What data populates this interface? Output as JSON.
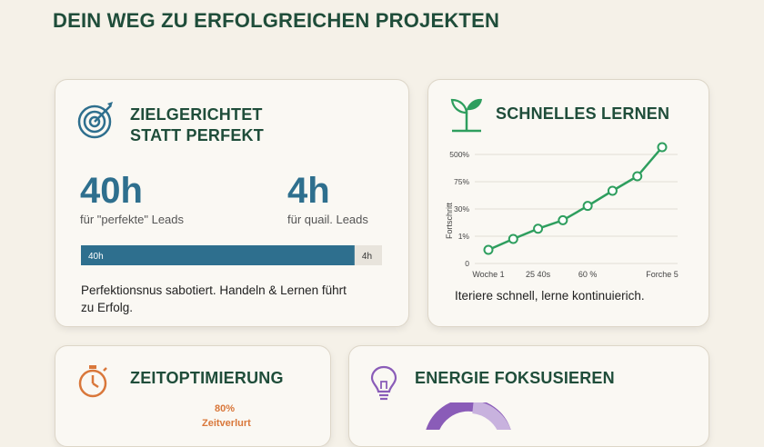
{
  "title": "DEIN WEG ZU ERFOLGREICHEN PROJEKTEN",
  "card1": {
    "title": "ZIELGERICHTET STATT PERFEKT",
    "stat1": {
      "value": "40h",
      "label": "für \"perfekte\" Leads"
    },
    "stat2": {
      "value": "4h",
      "label": "für quail. Leads"
    },
    "bar": {
      "values": [
        40,
        4
      ],
      "value_labels": [
        "40h",
        "4h"
      ],
      "colors": [
        "#2e6f8e",
        "#e8e4dc"
      ]
    },
    "caption": "Perfektionsnus sabotiert. Handeln & Lernen führt zu Erfolg."
  },
  "card2": {
    "title": "SCHNELLES LERNEN",
    "chart": {
      "type": "line",
      "ylabel": "Fortschritt",
      "categories": [
        "Woche 1",
        null,
        "25 40s",
        null,
        "60 %",
        null,
        null,
        "Forche 5"
      ],
      "values": [
        0.5,
        0.9,
        9,
        18,
        35,
        60,
        160,
        600
      ],
      "color": "#2e9e5e",
      "ylim": [
        0,
        600
      ],
      "yticks": [
        0,
        {
          "value": 1,
          "label": "1%"
        },
        {
          "value": 30,
          "label": "30%"
        },
        {
          "value": 75,
          "label": "75%"
        },
        {
          "value": 500,
          "label": "500%"
        }
      ],
      "grid": true
    },
    "caption": "Iteriere schnell, lerne kontinuierich."
  },
  "card3": {
    "title": "ZEITOPTIMIERUNG",
    "stat": "80%",
    "stat_label": "Zeitverlurt"
  },
  "card4": {
    "title": "ENERGIE FOKSUSIEREN"
  }
}
